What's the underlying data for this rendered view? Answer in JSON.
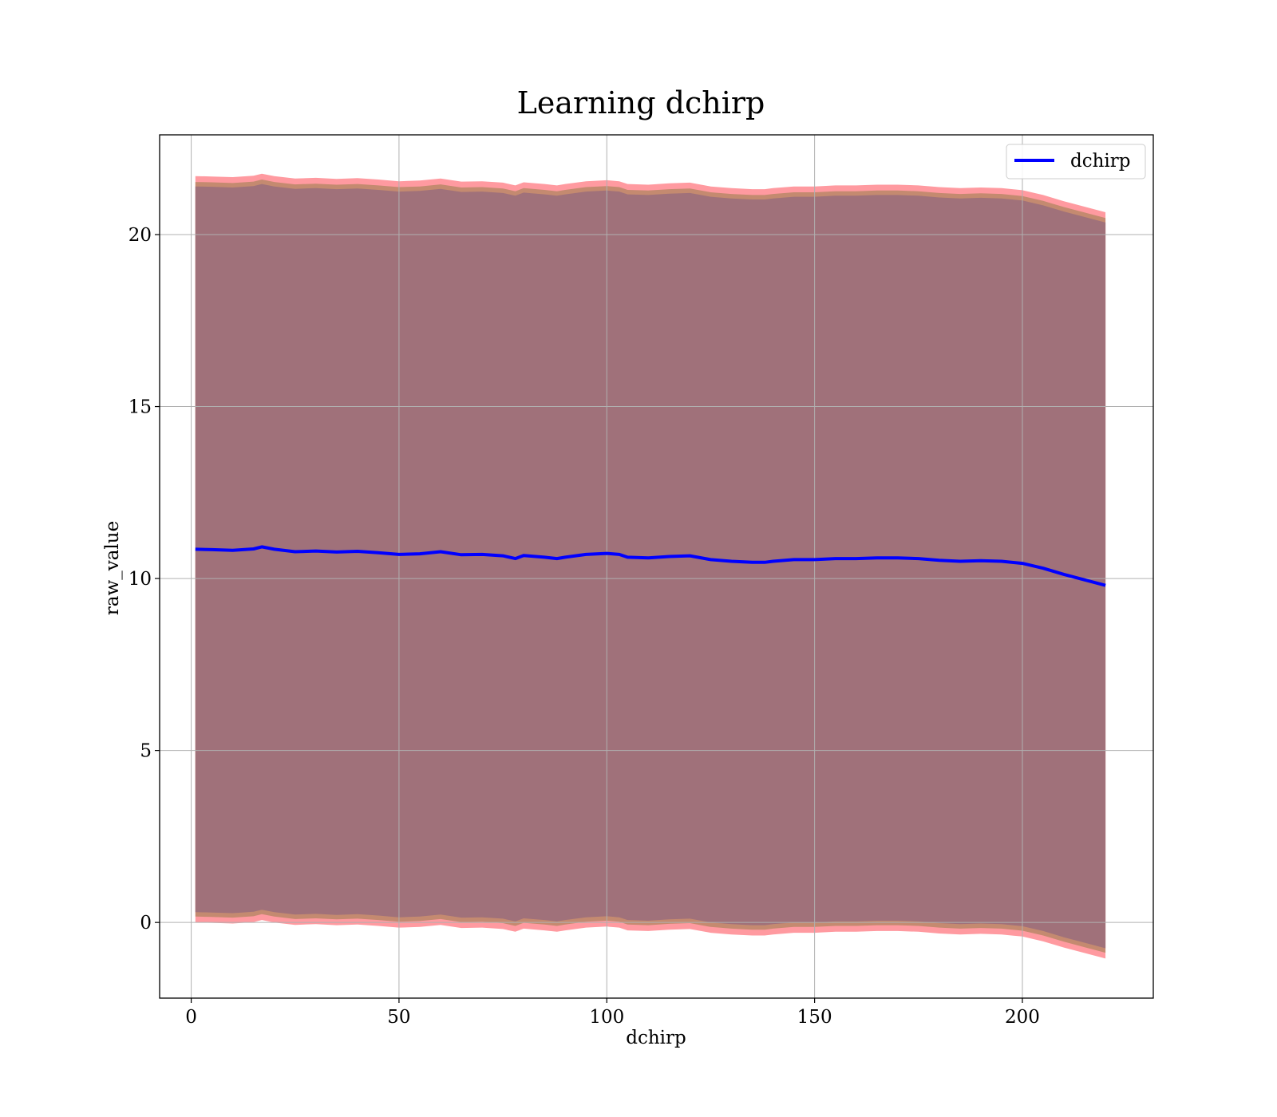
{
  "chart_data": {
    "type": "line",
    "title": "Learning dchirp",
    "xlabel": "dchirp",
    "ylabel": "raw_value",
    "xlim": [
      -7.6,
      231.5
    ],
    "ylim": [
      -2.2,
      22.9
    ],
    "xticks": [
      0,
      50,
      100,
      150,
      200
    ],
    "yticks": [
      0,
      5,
      10,
      15,
      20
    ],
    "grid": true,
    "legend": {
      "placement": "top-right",
      "entries": [
        "dchirp"
      ]
    },
    "colors": {
      "line": "#0000ff",
      "outer_band": "#ff9aa0",
      "middle_band": "#c48a70",
      "inner_band": "#a0717a",
      "grid": "#b0b0b0",
      "axes": "#000000"
    },
    "series": [
      {
        "name": "dchirp",
        "x": [
          1,
          5,
          10,
          15,
          17,
          20,
          25,
          30,
          35,
          40,
          45,
          50,
          55,
          60,
          65,
          70,
          75,
          78,
          80,
          85,
          88,
          90,
          95,
          100,
          103,
          105,
          110,
          115,
          120,
          125,
          130,
          135,
          138,
          140,
          145,
          150,
          155,
          160,
          165,
          170,
          175,
          180,
          185,
          190,
          195,
          200,
          205,
          210,
          215,
          220
        ],
        "y": [
          10.85,
          10.84,
          10.82,
          10.86,
          10.92,
          10.85,
          10.78,
          10.8,
          10.77,
          10.79,
          10.75,
          10.7,
          10.72,
          10.78,
          10.69,
          10.7,
          10.66,
          10.58,
          10.67,
          10.62,
          10.58,
          10.62,
          10.7,
          10.73,
          10.7,
          10.62,
          10.6,
          10.64,
          10.66,
          10.55,
          10.5,
          10.47,
          10.47,
          10.5,
          10.55,
          10.55,
          10.58,
          10.58,
          10.6,
          10.6,
          10.58,
          10.53,
          10.5,
          10.52,
          10.5,
          10.44,
          10.3,
          10.12,
          9.96,
          9.8
        ]
      }
    ],
    "band": {
      "outer_half_width": 10.85,
      "middle_half_width": 10.68,
      "inner_half_width": 10.55
    }
  }
}
